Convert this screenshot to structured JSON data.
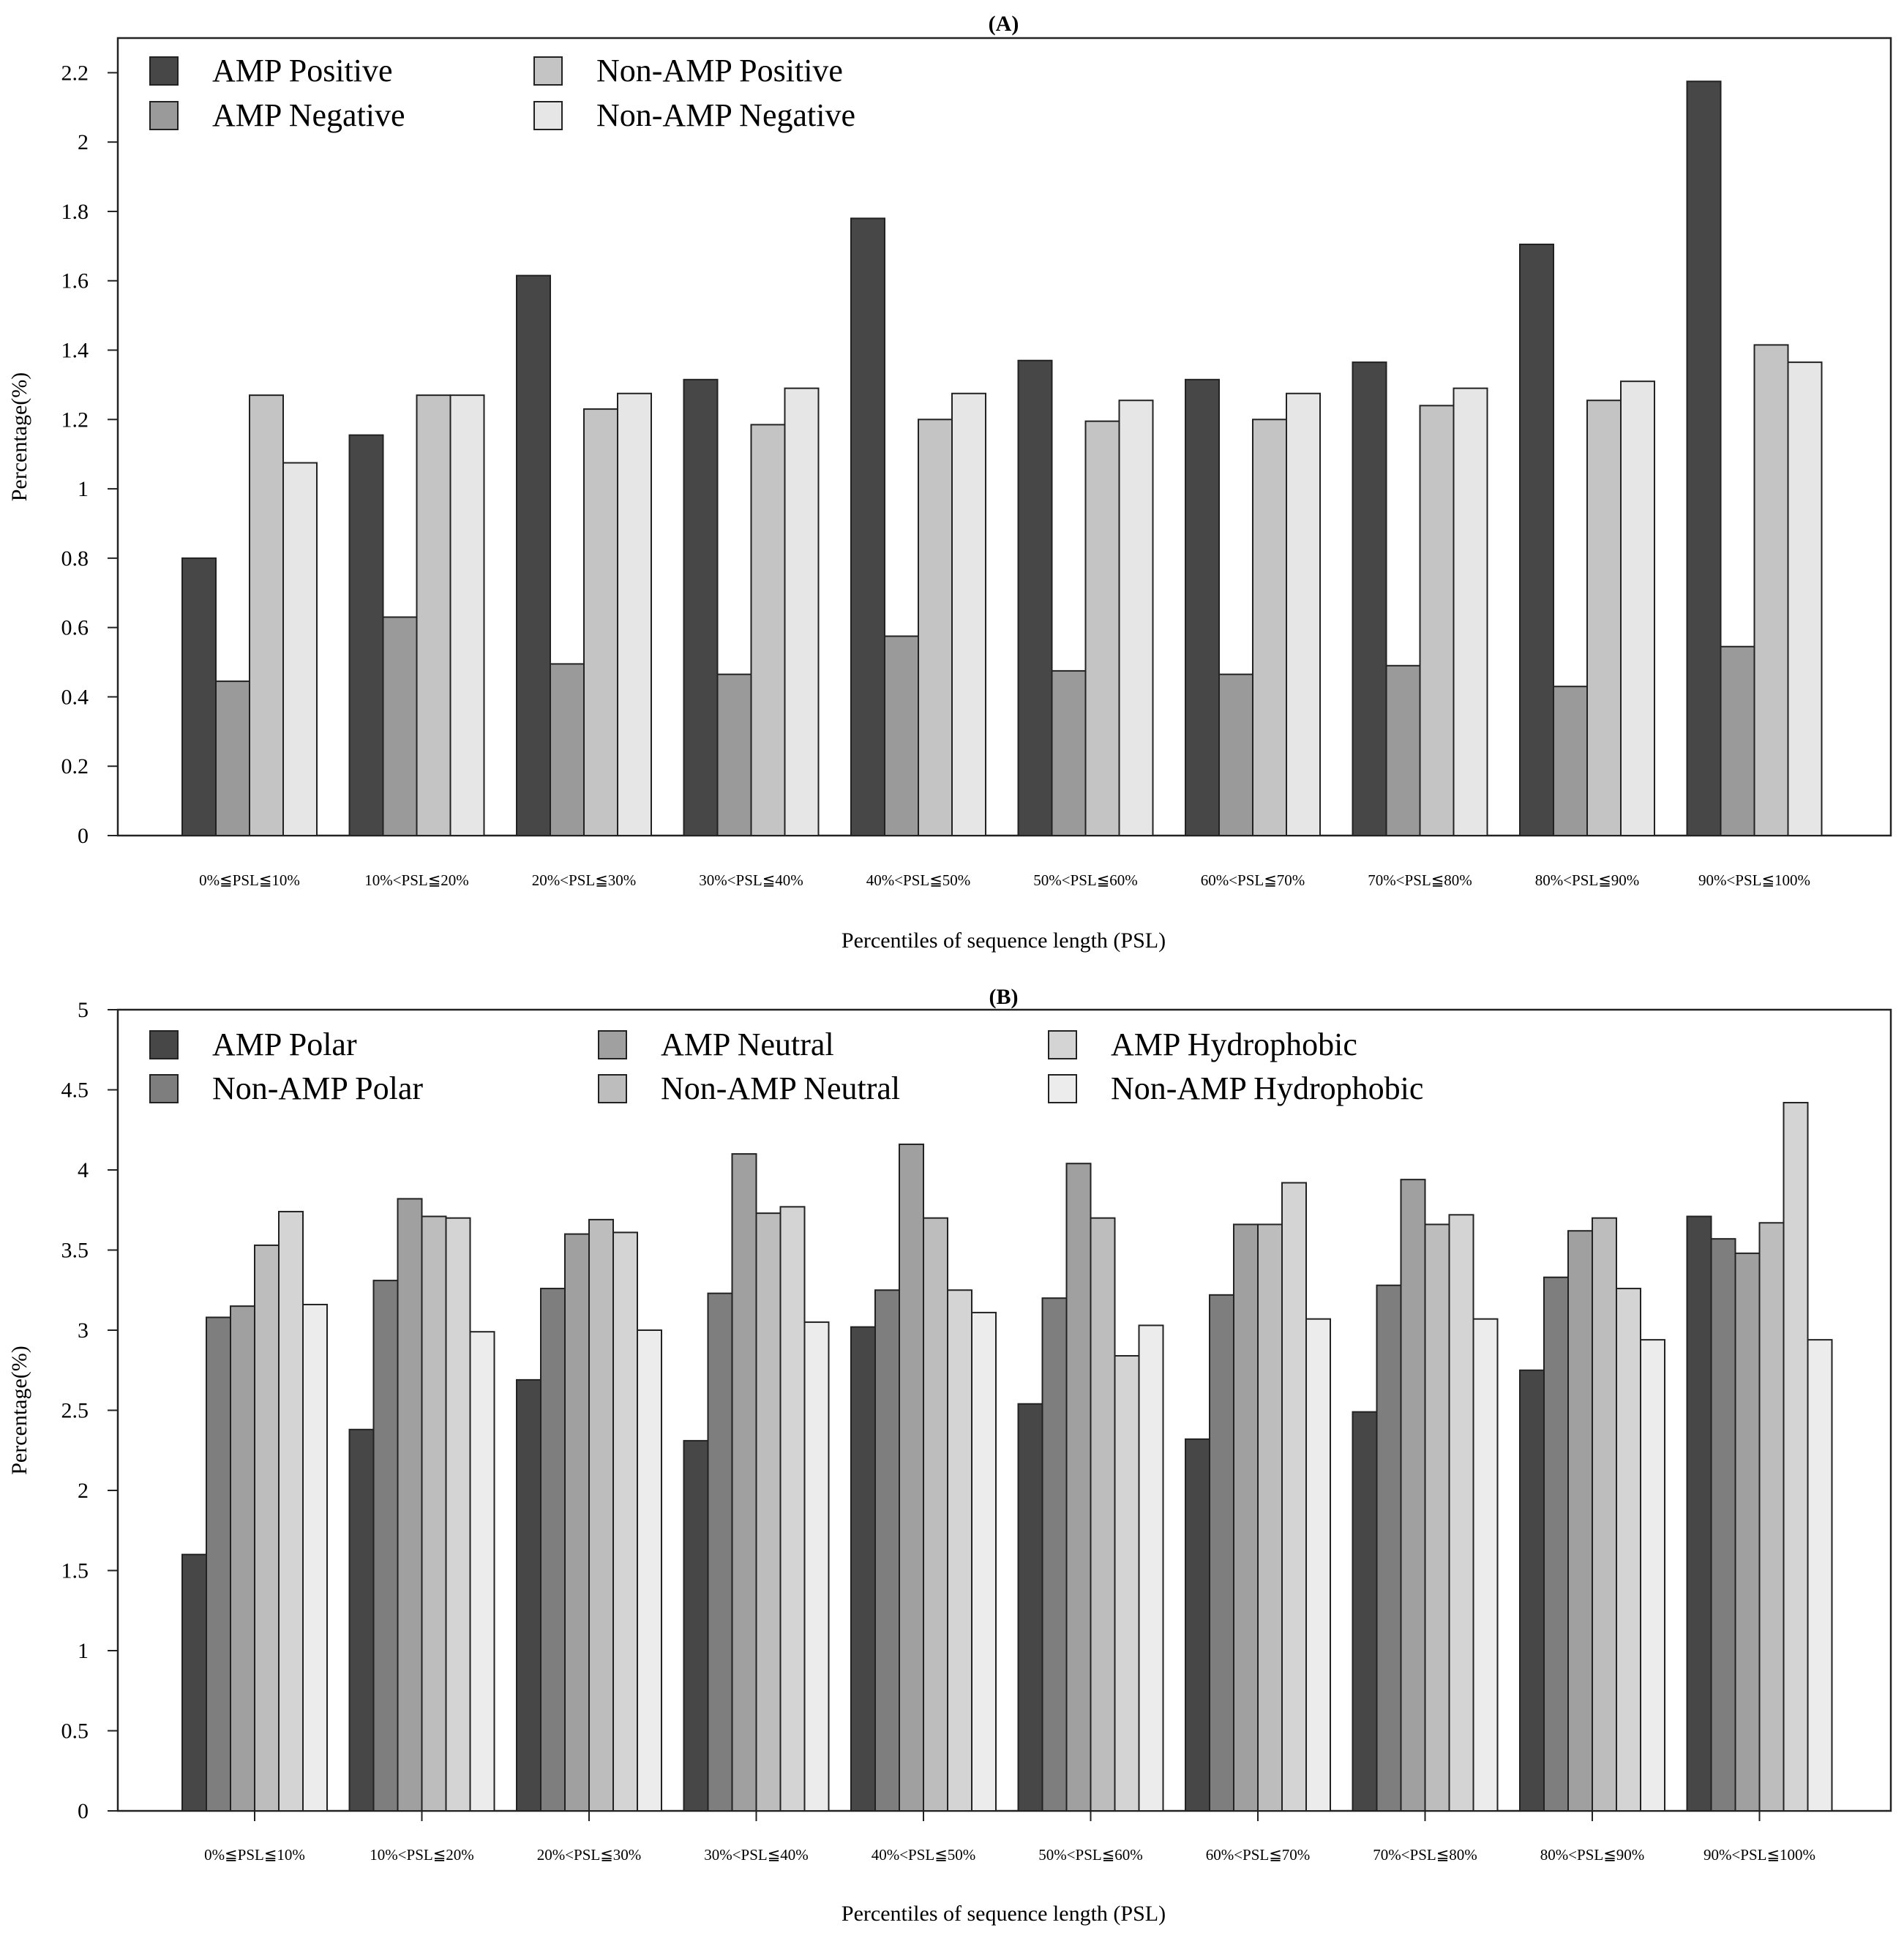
{
  "chart_data": [
    {
      "type": "bar",
      "title": "(A)",
      "xlabel": "Percentiles of sequence length (PSL)",
      "ylabel": "Percentage(%)",
      "ylim": [
        0,
        2.3
      ],
      "yticks": [
        0,
        0.2,
        0.4,
        0.6,
        0.8,
        1,
        1.2,
        1.4,
        1.6,
        1.8,
        2,
        2.2
      ],
      "ytick_labels": [
        "0",
        "0.2",
        "0.4",
        "0.6",
        "0.8",
        "1",
        "1.2",
        "1.4",
        "1.6",
        "1.8",
        "2",
        "2.2"
      ],
      "grid": false,
      "legend_position": "top-left",
      "legend_columns": 2,
      "categories": [
        "0%≦PSL≦10%",
        "10%<PSL≦20%",
        "20%<PSL≦30%",
        "30%<PSL≦40%",
        "40%<PSL≦50%",
        "50%<PSL≦60%",
        "60%<PSL≦70%",
        "70%<PSL≦80%",
        "80%<PSL≦90%",
        "90%<PSL≦100%"
      ],
      "series": [
        {
          "name": "AMP Positive",
          "color": "#474747",
          "values": [
            0.8,
            1.155,
            1.615,
            1.315,
            1.78,
            1.37,
            1.315,
            1.365,
            1.705,
            2.175
          ]
        },
        {
          "name": "AMP Negative",
          "color": "#9a9a9a",
          "values": [
            0.445,
            0.63,
            0.495,
            0.465,
            0.575,
            0.475,
            0.465,
            0.49,
            0.43,
            0.545
          ]
        },
        {
          "name": "Non-AMP Positive",
          "color": "#c4c4c4",
          "values": [
            1.27,
            1.27,
            1.23,
            1.185,
            1.2,
            1.195,
            1.2,
            1.24,
            1.255,
            1.415
          ]
        },
        {
          "name": "Non-AMP Negative",
          "color": "#e6e6e6",
          "values": [
            1.075,
            1.27,
            1.275,
            1.29,
            1.275,
            1.255,
            1.275,
            1.29,
            1.31,
            1.365
          ]
        }
      ]
    },
    {
      "type": "bar",
      "title": "(B)",
      "xlabel": "Percentiles of sequence length (PSL)",
      "ylabel": "Percentage(%)",
      "ylim": [
        0,
        5
      ],
      "yticks": [
        0,
        0.5,
        1,
        1.5,
        2,
        2.5,
        3,
        3.5,
        4,
        4.5,
        5
      ],
      "ytick_labels": [
        "0",
        "0.5",
        "1",
        "1.5",
        "2",
        "2.5",
        "3",
        "3.5",
        "4",
        "4.5",
        "5"
      ],
      "grid": false,
      "legend_position": "top-left",
      "legend_columns": 3,
      "categories": [
        "0%≦PSL≦10%",
        "10%<PSL≦20%",
        "20%<PSL≦30%",
        "30%<PSL≦40%",
        "40%<PSL≦50%",
        "50%<PSL≦60%",
        "60%<PSL≦70%",
        "70%<PSL≦80%",
        "80%<PSL≦90%",
        "90%<PSL≦100%"
      ],
      "series": [
        {
          "name": "AMP Polar",
          "color": "#474747",
          "values": [
            1.6,
            2.38,
            2.69,
            2.31,
            3.02,
            2.54,
            2.32,
            2.49,
            2.75,
            3.71
          ]
        },
        {
          "name": "Non-AMP Polar",
          "color": "#7e7e7e",
          "values": [
            3.08,
            3.31,
            3.26,
            3.23,
            3.25,
            3.2,
            3.22,
            3.28,
            3.33,
            3.57
          ]
        },
        {
          "name": "AMP Neutral",
          "color": "#a0a0a0",
          "values": [
            3.15,
            3.82,
            3.6,
            4.1,
            4.16,
            4.04,
            3.66,
            3.94,
            3.62,
            3.48
          ]
        },
        {
          "name": "Non-AMP Neutral",
          "color": "#bdbdbd",
          "values": [
            3.53,
            3.71,
            3.69,
            3.73,
            3.7,
            3.7,
            3.66,
            3.66,
            3.7,
            3.67
          ]
        },
        {
          "name": "AMP Hydrophobic",
          "color": "#d4d4d4",
          "values": [
            3.74,
            3.7,
            3.61,
            3.77,
            3.25,
            2.84,
            3.92,
            3.72,
            3.26,
            4.42
          ]
        },
        {
          "name": "Non-AMP Hydrophobic",
          "color": "#ececec",
          "values": [
            3.16,
            2.99,
            3.0,
            3.05,
            3.11,
            3.03,
            3.07,
            3.07,
            2.94,
            2.94
          ]
        }
      ]
    }
  ]
}
